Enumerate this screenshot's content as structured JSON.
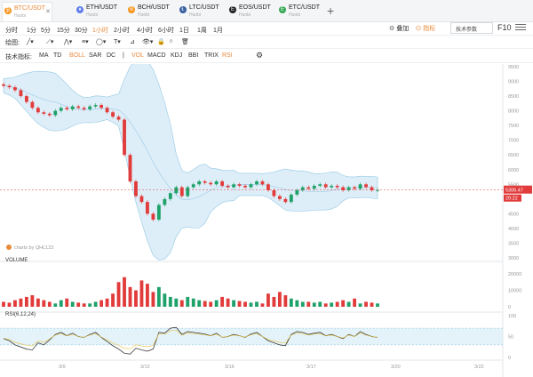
{
  "tabs": [
    {
      "symbol": "BTC/USDT",
      "exchange": "Huobi",
      "color": "#f7931a",
      "glyph": "₿",
      "active": true,
      "x": 2
    },
    {
      "symbol": "ETH/USDT",
      "exchange": "Huobi",
      "color": "#627eea",
      "glyph": "♦",
      "active": false,
      "x": 84
    },
    {
      "symbol": "BCH/USDT",
      "exchange": "Huobi",
      "color": "#f7931a",
      "glyph": "B",
      "active": false,
      "x": 142
    },
    {
      "symbol": "LTC/USDT",
      "exchange": "Huobi",
      "color": "#345d9d",
      "glyph": "Ł",
      "active": false,
      "x": 200
    },
    {
      "symbol": "EOS/USDT",
      "exchange": "Huobi",
      "color": "#222222",
      "glyph": "E",
      "active": false,
      "x": 256
    },
    {
      "symbol": "ETC/USDT",
      "exchange": "Huobi",
      "color": "#33a852",
      "glyph": "E",
      "active": false,
      "x": 312
    }
  ],
  "header_right": {
    "add": "叠加",
    "indicator": "指标",
    "tech_params": "技术参数",
    "f10": "F10"
  },
  "timeframes": [
    "分时",
    "1分",
    "5分",
    "15分",
    "30分",
    "1小时",
    "2小时",
    "4小时",
    "6小时",
    "1日",
    "1周",
    "1月"
  ],
  "active_timeframe": "1小时",
  "draw_label": "绘图:",
  "tech_label": "技术指标:",
  "tech_items": [
    "MA",
    "TD",
    "BOLL",
    "SAR",
    "DC",
    "|",
    "VOL",
    "MACD",
    "KDJ",
    "BBI",
    "TRIX",
    "RSI"
  ],
  "active_tech": [
    "BOLL",
    "VOL",
    "RSI"
  ],
  "price_axis": [
    "9500",
    "9000",
    "8500",
    "8000",
    "7500",
    "7000",
    "6500",
    "6000",
    "5500",
    "5000",
    "4500",
    "4000",
    "3500",
    "3000"
  ],
  "current_price": "5306.47",
  "countdown": "29:22",
  "watermark": "charts by QHL123",
  "volume_label": "VOLUME",
  "volume_axis": [
    "20000",
    "10000",
    "0"
  ],
  "rsi_label": "RSI(6,12,24)",
  "rsi_axis": [
    "100",
    "50",
    "0"
  ],
  "date_axis": [
    "3/9",
    "3/12",
    "3/16",
    "3/17",
    "3/20",
    "3/22"
  ],
  "colors": {
    "up": "#1fa16a",
    "down": "#e23b3b",
    "accent": "#e8893a",
    "band": "#d9ecf7"
  },
  "chart_data": {
    "type": "candlestick",
    "price": {
      "open": [
        8900,
        8850,
        8800,
        8700,
        8500,
        8300,
        8100,
        7950,
        7900,
        7850,
        8000,
        8100,
        8050,
        8150,
        8100,
        8050,
        8150,
        8200,
        8100,
        7950,
        7800,
        7700,
        6500,
        5600,
        5100,
        4900,
        4500,
        4300,
        4800,
        5000,
        5200,
        5400,
        5100,
        5400,
        5500,
        5600,
        5550,
        5500,
        5600,
        5450,
        5400,
        5500,
        5450,
        5400,
        5500,
        5600,
        5500,
        5300,
        5100,
        5000,
        4900,
        5150,
        5300,
        5400,
        5350,
        5450,
        5500,
        5400,
        5450,
        5400,
        5300,
        5400,
        5350,
        5500,
        5400,
        5300
      ],
      "close": [
        8850,
        8800,
        8700,
        8500,
        8300,
        8100,
        7950,
        7900,
        7850,
        8000,
        8100,
        8050,
        8150,
        8100,
        8050,
        8150,
        8200,
        8100,
        7950,
        7800,
        7700,
        6500,
        5600,
        5100,
        4900,
        4500,
        4300,
        4800,
        5000,
        5200,
        5400,
        5100,
        5400,
        5500,
        5600,
        5550,
        5500,
        5600,
        5450,
        5400,
        5500,
        5450,
        5400,
        5500,
        5600,
        5500,
        5300,
        5100,
        5000,
        4900,
        5150,
        5300,
        5400,
        5350,
        5450,
        5500,
        5400,
        5450,
        5400,
        5300,
        5400,
        5350,
        5500,
        5400,
        5300,
        5306
      ]
    },
    "volume": [
      3000,
      2500,
      4000,
      5000,
      6000,
      7000,
      5000,
      4000,
      3000,
      2000,
      4000,
      5000,
      3000,
      2500,
      2000,
      2000,
      3000,
      4000,
      5000,
      8000,
      15000,
      18000,
      12000,
      10000,
      16000,
      14000,
      9000,
      12000,
      8000,
      6000,
      5000,
      4000,
      6000,
      5000,
      4000,
      3500,
      3000,
      4000,
      6000,
      5000,
      4000,
      3500,
      3000,
      2500,
      3000,
      2000,
      8000,
      6000,
      9000,
      7000,
      5000,
      4000,
      3000,
      3000,
      2500,
      3000,
      2000,
      2500,
      3000,
      4000,
      3000,
      5000,
      2000,
      3000,
      2500,
      2000
    ],
    "rsi": [
      45,
      40,
      30,
      25,
      20,
      18,
      35,
      30,
      42,
      55,
      60,
      52,
      58,
      50,
      48,
      55,
      60,
      48,
      38,
      28,
      20,
      10,
      8,
      22,
      18,
      15,
      20,
      60,
      58,
      70,
      72,
      55,
      62,
      60,
      58,
      56,
      52,
      58,
      48,
      50,
      55,
      52,
      48,
      56,
      60,
      50,
      40,
      35,
      30,
      28,
      55,
      62,
      60,
      55,
      58,
      60,
      52,
      55,
      50,
      45,
      55,
      50,
      62,
      55,
      50,
      48
    ],
    "ylim": [
      3000,
      9500
    ]
  }
}
